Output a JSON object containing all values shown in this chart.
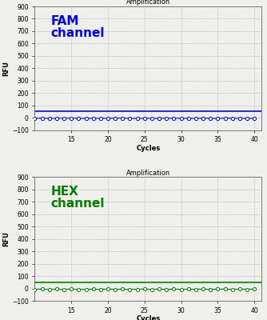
{
  "title": "Amplification",
  "xlabel": "Cycles",
  "ylabel": "RFU",
  "ylim": [
    -100,
    900
  ],
  "yticks": [
    -100,
    0,
    100,
    200,
    300,
    400,
    500,
    600,
    700,
    800,
    900
  ],
  "xlim": [
    10,
    41
  ],
  "xticks": [
    15,
    20,
    25,
    30,
    35,
    40
  ],
  "x_data": [
    10,
    11,
    12,
    13,
    14,
    15,
    16,
    17,
    18,
    19,
    20,
    21,
    22,
    23,
    24,
    25,
    26,
    27,
    28,
    29,
    30,
    31,
    32,
    33,
    34,
    35,
    36,
    37,
    38,
    39,
    40
  ],
  "fam_y": [
    -5,
    -3,
    -6,
    -4,
    -5,
    -3,
    -6,
    -5,
    -4,
    -6,
    -5,
    -3,
    -4,
    -5,
    -6,
    -4,
    -5,
    -6,
    -3,
    -5,
    -4,
    -6,
    -5,
    -4,
    -5,
    -6,
    -3,
    -5,
    -4,
    -6,
    -5
  ],
  "hex_y": [
    -8,
    -5,
    -9,
    -6,
    -8,
    -5,
    -9,
    -7,
    -6,
    -8,
    -5,
    -7,
    -6,
    -8,
    -7,
    -5,
    -8,
    -6,
    -7,
    -5,
    -8,
    -6,
    -7,
    -5,
    -8,
    -6,
    -5,
    -8,
    -6,
    -7,
    -5
  ],
  "fam_threshold": 50,
  "hex_threshold": 50,
  "fam_color": "#0000FF",
  "hex_color": "#008000",
  "fam_label": "FAM\nchannel",
  "hex_label": "HEX\nchannel",
  "fam_label_color": "#0000FF",
  "hex_label_color": "#008000",
  "bg_color": "#EFEFEB",
  "grid_color": "#BBBBBB",
  "marker": "o",
  "marker_size": 3,
  "line_width": 0.8,
  "threshold_lw": 1.2,
  "title_fontsize": 6,
  "tick_fontsize": 5.5,
  "label_fontsize": 6,
  "channel_fontsize": 11
}
